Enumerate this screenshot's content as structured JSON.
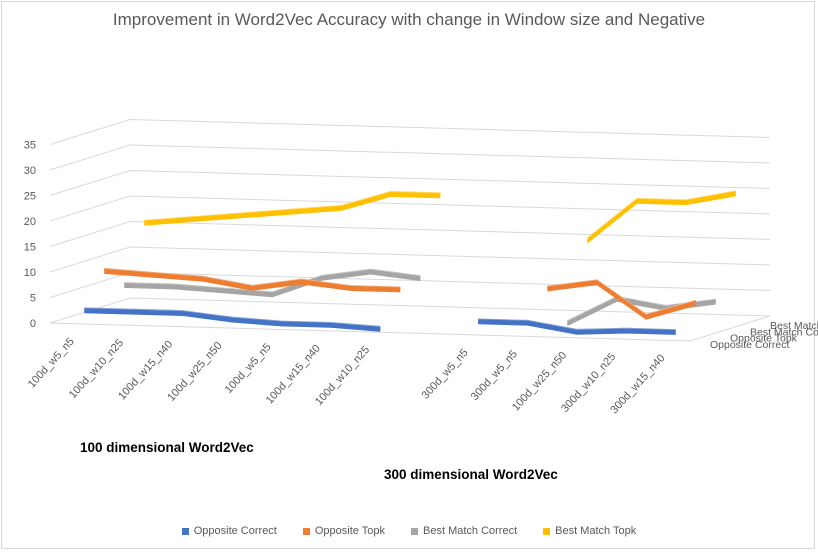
{
  "chart_data": {
    "type": "line",
    "title": "Improvement in Word2Vec Accuracy with change in Window size and Negative",
    "categories": [
      "100d_w5_n5",
      "100d_w10_n25",
      "100d_w15_n40",
      "100d_w25_n50",
      "100d_w5_n5",
      "100d_w15_n40",
      "100d_w10_n25",
      "",
      "300d_w5_n5",
      "300d_w5_n5",
      "100d_w25_n50",
      "300d_w10_n25",
      "300d_w15_n40"
    ],
    "depth_categories": [
      "Opposite Correct",
      "Opposite Topk",
      "Best Match Correct",
      "Best Match Topk"
    ],
    "ylim": [
      0,
      35
    ],
    "yticks": [
      0,
      5,
      10,
      15,
      20,
      25,
      30,
      35
    ],
    "series": [
      {
        "name": "Opposite Correct",
        "color": "#4472c4",
        "values": [
          2.5,
          2.5,
          2.5,
          1.5,
          1,
          1,
          0.5,
          null,
          2.5,
          2.5,
          1,
          1.5,
          1.5
        ]
      },
      {
        "name": "Opposite Topk",
        "color": "#ed7d31",
        "values": [
          9,
          8.5,
          8,
          6.5,
          8,
          7,
          7,
          null,
          null,
          8,
          9.5,
          3,
          6
        ]
      },
      {
        "name": "Best Match Correct",
        "color": "#a5a5a5",
        "values": [
          5,
          5,
          4.5,
          4,
          7.5,
          9,
          8,
          null,
          null,
          0,
          5,
          3.5,
          5
        ]
      },
      {
        "name": "Best Match Topk",
        "color": "#ffc000",
        "values": [
          16,
          17,
          18,
          19,
          20,
          23,
          23,
          null,
          null,
          15,
          23,
          23,
          25
        ]
      }
    ],
    "annotations": [
      "100 dimensional Word2Vec",
      "300 dimensional Word2Vec"
    ],
    "legend_position": "bottom",
    "grid": true
  }
}
